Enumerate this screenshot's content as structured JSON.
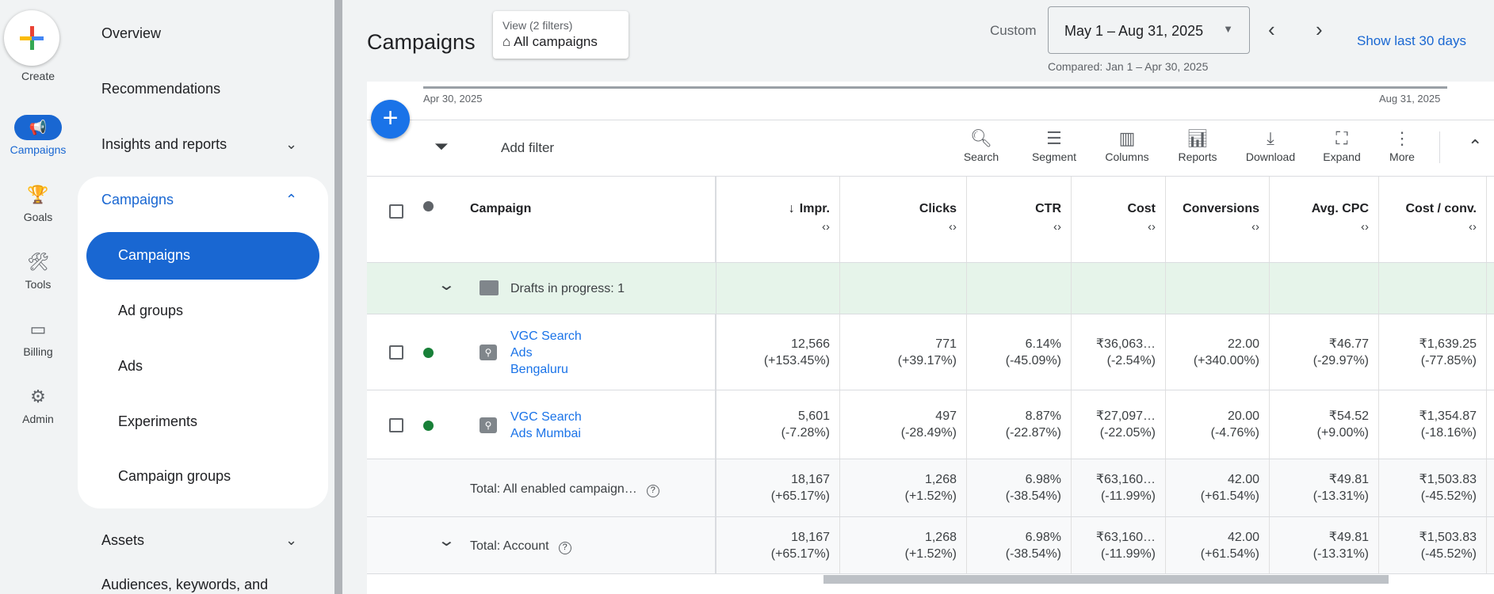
{
  "rail": {
    "create": "Create",
    "items": [
      {
        "label": "Campaigns",
        "icon": "megaphone-icon"
      },
      {
        "label": "Goals",
        "icon": "trophy-icon"
      },
      {
        "label": "Tools",
        "icon": "tools-icon"
      },
      {
        "label": "Billing",
        "icon": "credit-card-icon"
      },
      {
        "label": "Admin",
        "icon": "gear-icon"
      }
    ]
  },
  "nav": {
    "overview": "Overview",
    "recommendations": "Recommendations",
    "insights": "Insights and reports",
    "campaigns_group": "Campaigns",
    "sub": [
      "Campaigns",
      "Ad groups",
      "Ads",
      "Experiments",
      "Campaign groups"
    ],
    "assets": "Assets",
    "audiences": "Audiences, keywords, and"
  },
  "header": {
    "title": "Campaigns",
    "view_label": "View (2 filters)",
    "view_value": "All campaigns",
    "custom": "Custom",
    "date_range": "May 1 – Aug 31, 2025",
    "compared": "Compared: Jan 1 – Apr 30, 2025",
    "show_last": "Show last 30 days"
  },
  "timeline": {
    "start": "Apr 30, 2025",
    "end": "Aug 31, 2025"
  },
  "toolbar": {
    "add_filter": "Add filter",
    "tools": [
      "Search",
      "Segment",
      "Columns",
      "Reports",
      "Download",
      "Expand",
      "More"
    ]
  },
  "table": {
    "columns": [
      "Campaign",
      "Impr.",
      "Clicks",
      "CTR",
      "Cost",
      "Conversions",
      "Avg. CPC",
      "Cost / conv."
    ],
    "sort_arrow": "↓",
    "sorter": "‹›",
    "drafts": "Drafts in progress: 1",
    "rows": [
      {
        "name": [
          "VGC Search",
          "Ads",
          "Bengaluru"
        ],
        "status_color": "#188038",
        "values": [
          "12,566",
          "771",
          "6.14%",
          "₹36,063…",
          "22.00",
          "₹46.77",
          "₹1,639.25"
        ],
        "changes": [
          "(+153.45%)",
          "(+39.17%)",
          "(-45.09%)",
          "(-2.54%)",
          "(+340.00%)",
          "(-29.97%)",
          "(-77.85%)"
        ]
      },
      {
        "name": [
          "VGC Search",
          "Ads Mumbai"
        ],
        "status_color": "#188038",
        "values": [
          "5,601",
          "497",
          "8.87%",
          "₹27,097…",
          "20.00",
          "₹54.52",
          "₹1,354.87"
        ],
        "changes": [
          "(-7.28%)",
          "(-28.49%)",
          "(-22.87%)",
          "(-22.05%)",
          "(-4.76%)",
          "(+9.00%)",
          "(-18.16%)"
        ]
      }
    ],
    "totals": [
      {
        "label": "Total: All enabled campaign…",
        "values": [
          "18,167",
          "1,268",
          "6.98%",
          "₹63,160…",
          "42.00",
          "₹49.81",
          "₹1,503.83"
        ],
        "changes": [
          "(+65.17%)",
          "(+1.52%)",
          "(-38.54%)",
          "(-11.99%)",
          "(+61.54%)",
          "(-13.31%)",
          "(-45.52%)"
        ]
      },
      {
        "label": "Total: Account",
        "values": [
          "18,167",
          "1,268",
          "6.98%",
          "₹63,160…",
          "42.00",
          "₹49.81",
          "₹1,503.83"
        ],
        "changes": [
          "(+65.17%)",
          "(+1.52%)",
          "(-38.54%)",
          "(-11.99%)",
          "(+61.54%)",
          "(-13.31%)",
          "(-45.52%)"
        ]
      }
    ]
  },
  "colors": {
    "accent": "#1967d2",
    "draft_bg": "#e6f4ea",
    "total_bg": "#f8f9fa"
  }
}
